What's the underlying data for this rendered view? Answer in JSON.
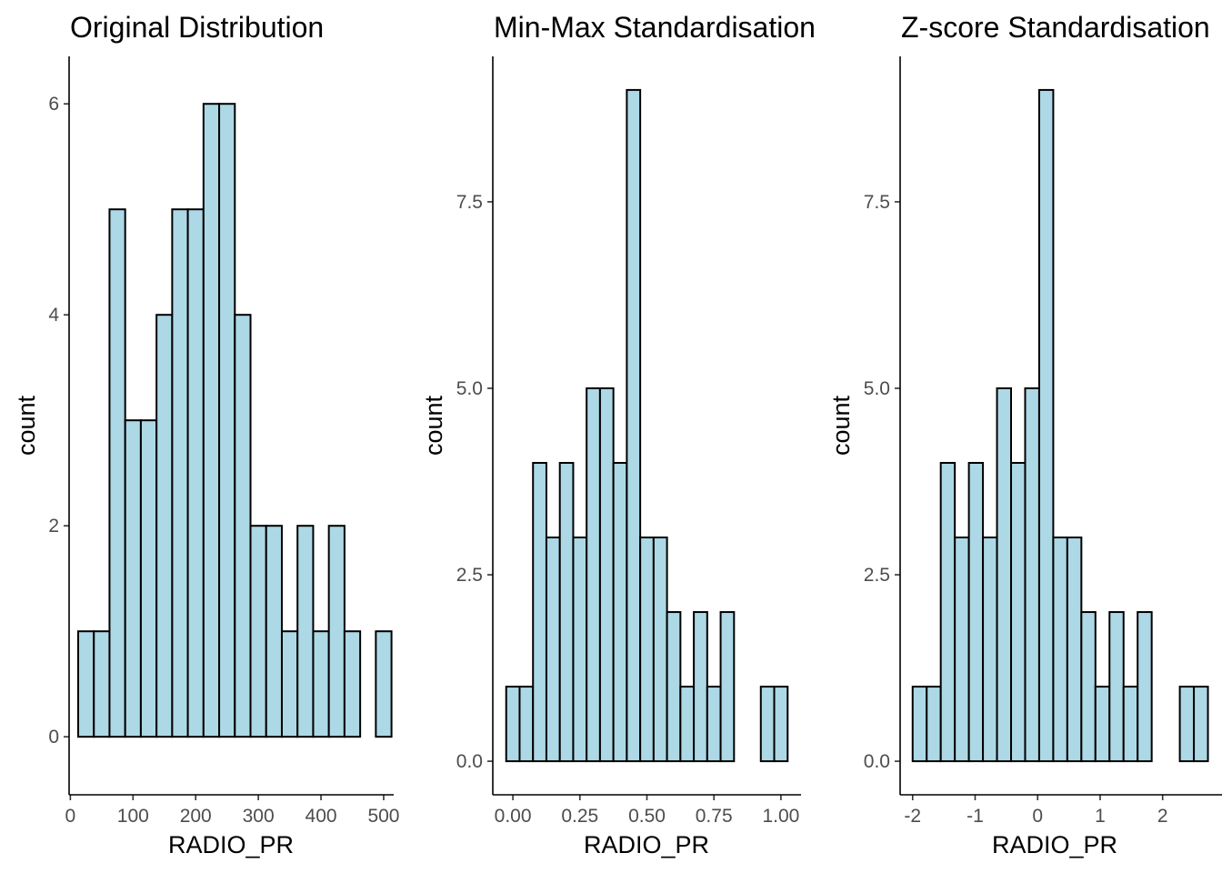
{
  "chart_data": [
    {
      "type": "bar",
      "title": "Original Distribution",
      "xlabel": "RADIO_PR",
      "ylabel": "count",
      "bin_width": 25,
      "bin_starts": [
        12.5,
        37.5,
        62.5,
        87.5,
        112.5,
        137.5,
        162.5,
        187.5,
        212.5,
        237.5,
        262.5,
        287.5,
        312.5,
        337.5,
        362.5,
        387.5,
        412.5,
        437.5,
        462.5,
        487.5
      ],
      "values": [
        1,
        1,
        5,
        3,
        3,
        4,
        5,
        5,
        6,
        6,
        4,
        2,
        2,
        1,
        2,
        1,
        2,
        1,
        0,
        1
      ],
      "xlim": [
        -2,
        516
      ],
      "ylim": [
        -0.55,
        6.45
      ],
      "xticks": [
        0,
        100,
        200,
        300,
        400,
        500
      ],
      "xtick_labels": [
        "0",
        "100",
        "200",
        "300",
        "400",
        "500"
      ],
      "yticks": [
        0,
        2,
        4,
        6
      ],
      "ytick_labels": [
        "0",
        "2",
        "4",
        "6"
      ],
      "grid": false
    },
    {
      "type": "bar",
      "title": "Min-Max Standardisation",
      "xlabel": "RADIO_PR",
      "ylabel": "count",
      "bin_width": 0.05,
      "bin_starts": [
        -0.025,
        0.025,
        0.075,
        0.125,
        0.175,
        0.225,
        0.275,
        0.325,
        0.375,
        0.425,
        0.475,
        0.525,
        0.575,
        0.625,
        0.675,
        0.725,
        0.775,
        0.825,
        0.875,
        0.925,
        0.975
      ],
      "values": [
        1,
        1,
        4,
        3,
        4,
        3,
        5,
        5,
        4,
        9,
        3,
        3,
        2,
        1,
        2,
        1,
        2,
        0,
        0,
        1,
        1
      ],
      "xlim": [
        -0.075,
        1.075
      ],
      "ylim": [
        -0.45,
        9.45
      ],
      "xticks": [
        0,
        0.25,
        0.5,
        0.75,
        1.0
      ],
      "xtick_labels": [
        "0.00",
        "0.25",
        "0.50",
        "0.75",
        "1.00"
      ],
      "yticks": [
        0,
        2.5,
        5,
        7.5
      ],
      "ytick_labels": [
        "0.0",
        "2.5",
        "5.0",
        "7.5"
      ],
      "grid": false
    },
    {
      "type": "bar",
      "title": "Z-score Standardisation",
      "xlabel": "RADIO_PR",
      "ylabel": "count",
      "bin_width": 0.225,
      "bin_starts": [
        -2.0,
        -1.775,
        -1.55,
        -1.325,
        -1.1,
        -0.875,
        -0.65,
        -0.425,
        -0.2,
        0.025,
        0.25,
        0.475,
        0.7,
        0.925,
        1.15,
        1.375,
        1.6,
        1.825,
        2.05,
        2.275,
        2.5
      ],
      "values": [
        1,
        1,
        4,
        3,
        4,
        3,
        5,
        4,
        5,
        9,
        3,
        3,
        2,
        1,
        2,
        1,
        2,
        0,
        0,
        1,
        1
      ],
      "xlim": [
        -2.2,
        2.95
      ],
      "ylim": [
        -0.45,
        9.45
      ],
      "xticks": [
        -2,
        -1,
        0,
        1,
        2
      ],
      "xtick_labels": [
        "-2",
        "-1",
        "0",
        "1",
        "2"
      ],
      "yticks": [
        0,
        2.5,
        5,
        7.5
      ],
      "ytick_labels": [
        "0.0",
        "2.5",
        "5.0",
        "7.5"
      ],
      "grid": false
    }
  ],
  "colors": {
    "bar_fill": "#add8e6",
    "bar_outline": "#000000",
    "axis": "#000000",
    "tick_label": "#4d4d4d",
    "background": "#ffffff"
  }
}
